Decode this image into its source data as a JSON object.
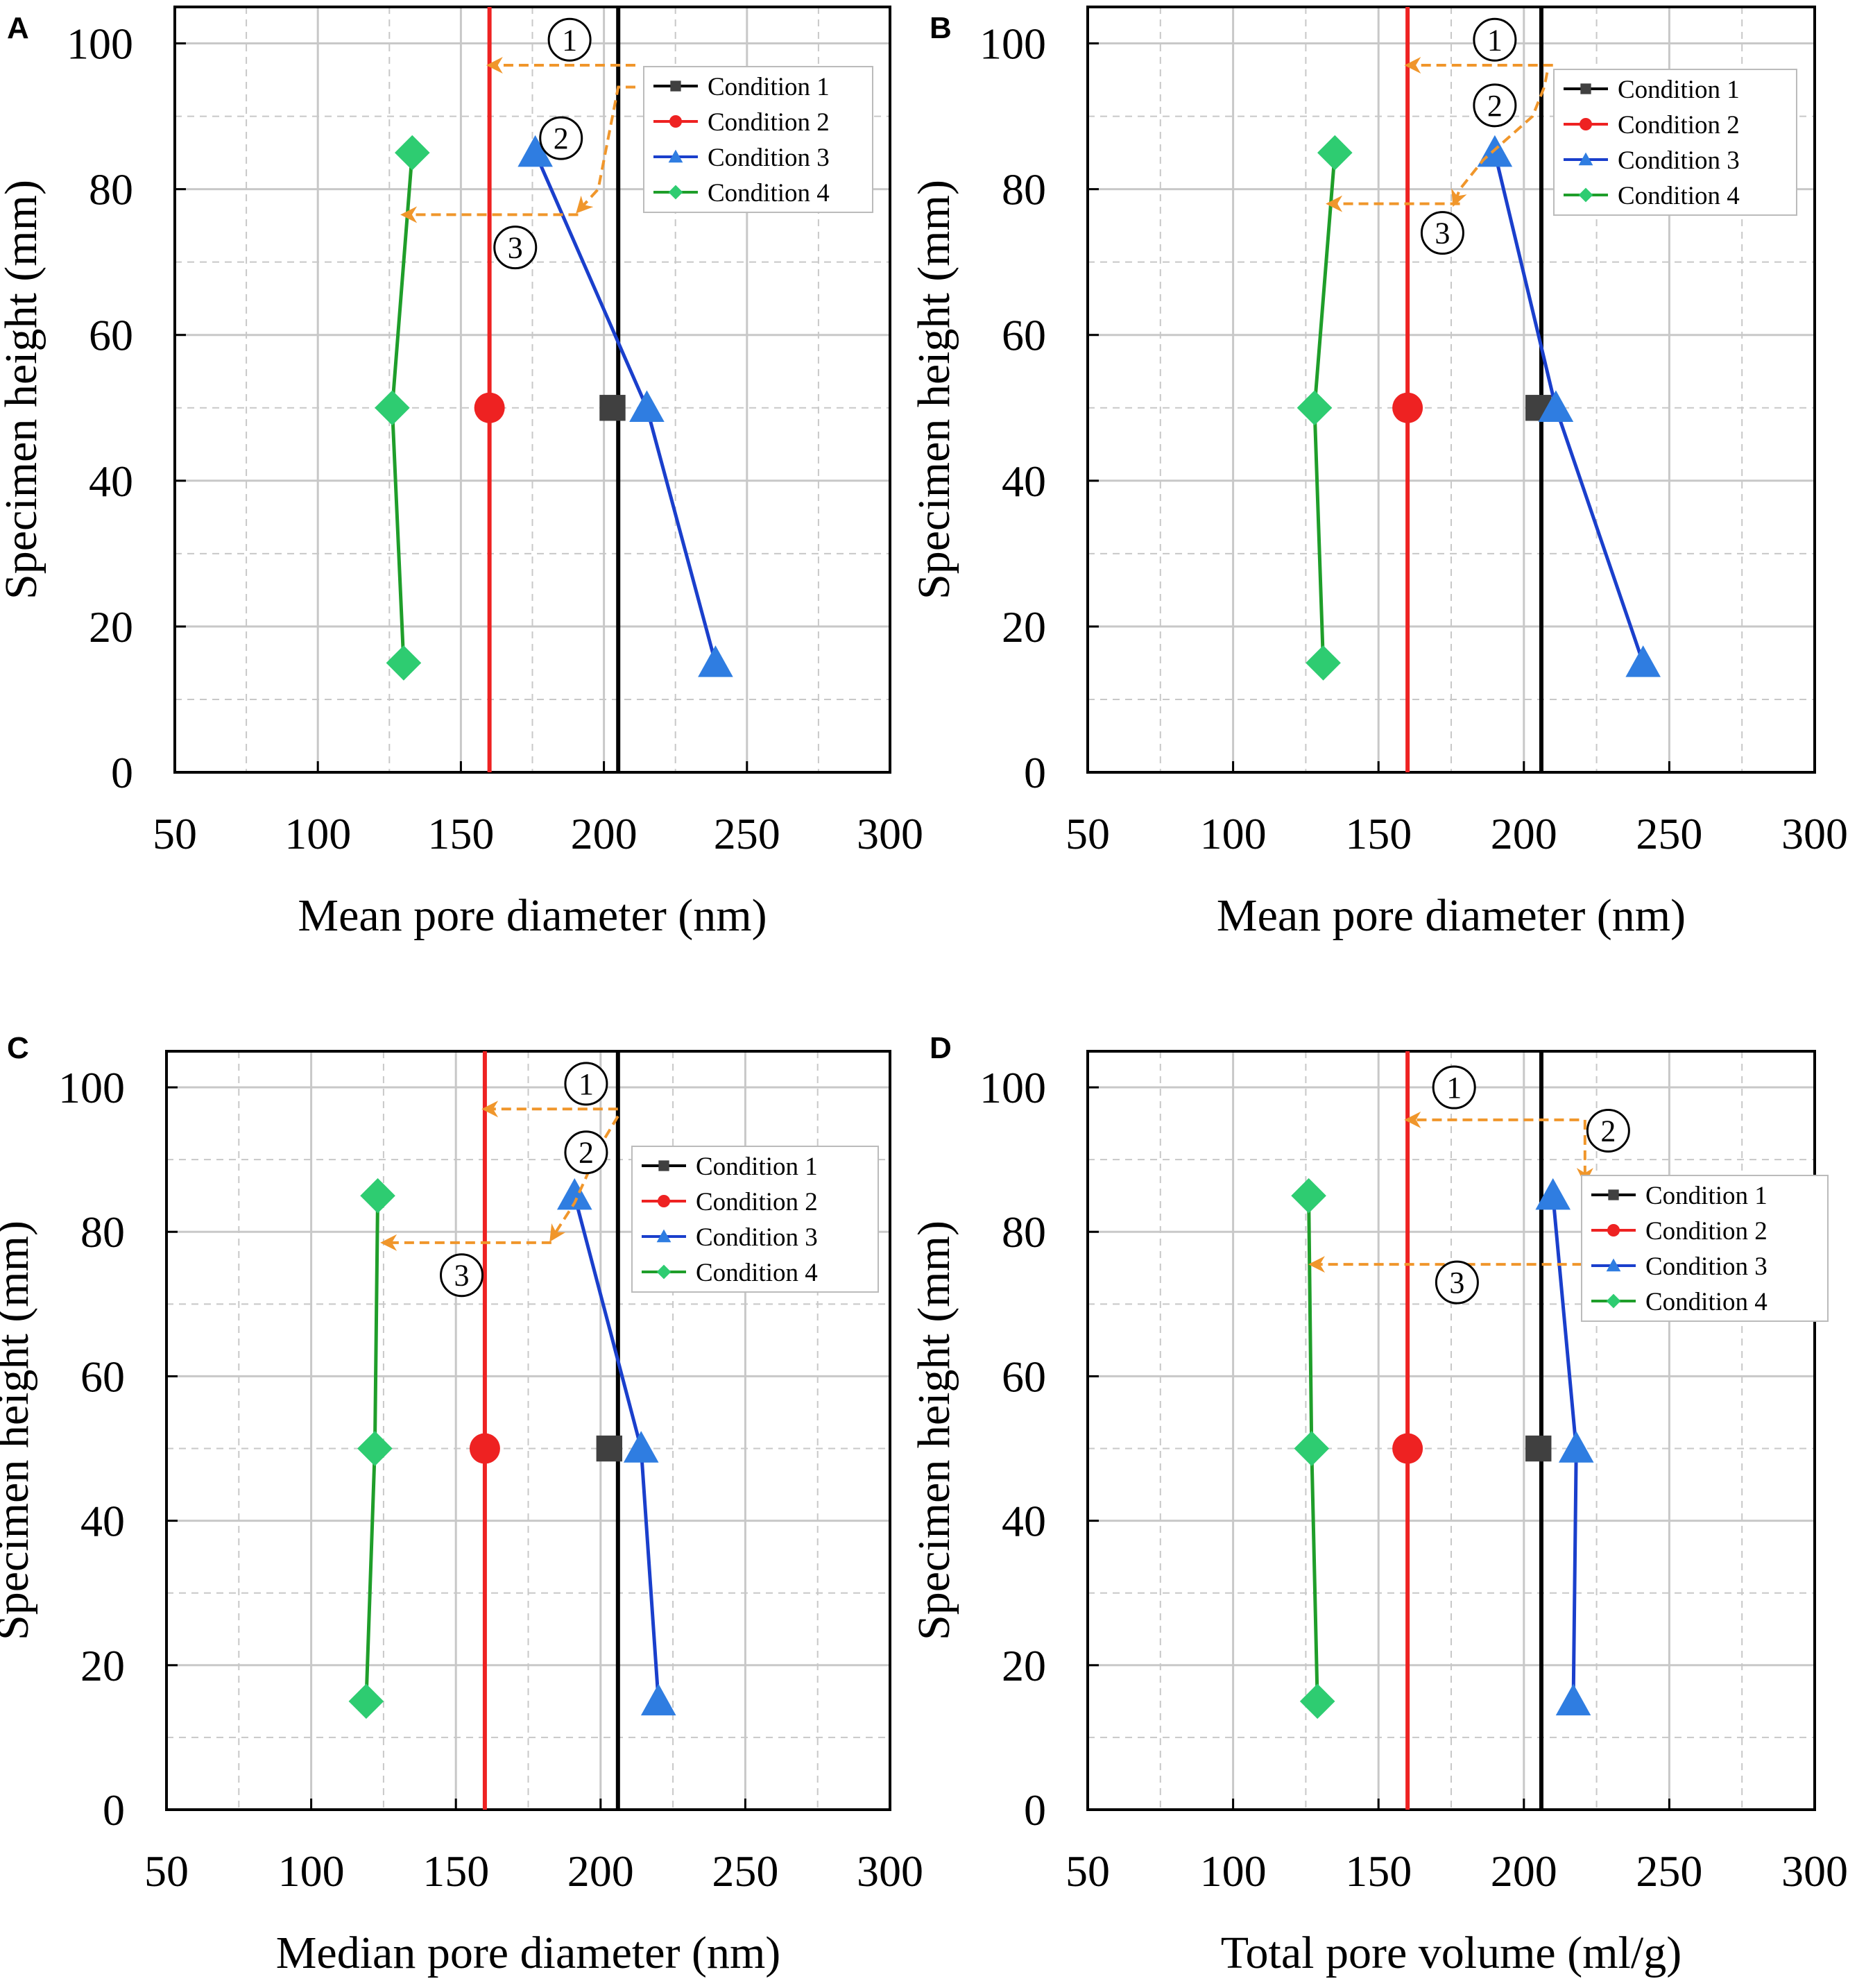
{
  "figure": {
    "colors": {
      "condition_1": "#000000",
      "condition_1_marker": "#404040",
      "condition_2": "#ee2222",
      "condition_3": "#1a3fcc",
      "condition_3_marker": "#2f7de1",
      "condition_4": "#1f9e2a",
      "condition_4_marker": "#2ecc71",
      "annotation_arrow": "#f0962b",
      "grid": "#c8c8c8"
    }
  },
  "chart_data": [
    {
      "panel": "A",
      "type": "line",
      "xlabel": "Mean pore diameter (nm)",
      "ylabel": "Specimen height (mm)",
      "xlim": [
        50,
        300
      ],
      "ylim": [
        0,
        105
      ],
      "xticks": [
        "50",
        "100",
        "150",
        "200",
        "250",
        "300"
      ],
      "yticks": [
        "0",
        "20",
        "40",
        "60",
        "80",
        "100"
      ],
      "grid": true,
      "legend_position": "top-right",
      "series": [
        {
          "name": "Condition 1",
          "kind": "vline",
          "x": 205,
          "marker": "square",
          "points": [
            [
              203,
              50
            ]
          ]
        },
        {
          "name": "Condition 2",
          "kind": "vline",
          "x": 160,
          "marker": "circle",
          "points": [
            [
              160,
              50
            ]
          ]
        },
        {
          "name": "Condition 3",
          "kind": "line",
          "marker": "triangle",
          "points": [
            [
              176,
              85
            ],
            [
              215,
              50
            ],
            [
              239,
              15
            ]
          ]
        },
        {
          "name": "Condition 4",
          "kind": "line",
          "marker": "diamond",
          "points": [
            [
              133,
              85
            ],
            [
              126,
              50
            ],
            [
              130,
              15
            ]
          ]
        }
      ],
      "annotations": [
        {
          "label": "1",
          "at": [
            188,
            100.5
          ],
          "arrow": [
            [
              211,
              97
            ],
            [
              160,
              97
            ]
          ]
        },
        {
          "label": "2",
          "at": [
            185,
            87
          ],
          "arrow": [
            [
              211,
              94
            ],
            [
              205,
              94
            ],
            [
              198,
              80
            ],
            [
              191,
              77
            ]
          ]
        },
        {
          "label": "3",
          "at": [
            169,
            72
          ],
          "arrow": [
            [
              191,
              76.5
            ],
            [
              130,
              76.5
            ]
          ]
        }
      ]
    },
    {
      "panel": "B",
      "type": "line",
      "xlabel": "Mean pore diameter (nm)",
      "ylabel": "Specimen height (mm)",
      "xlim": [
        50,
        300
      ],
      "ylim": [
        0,
        105
      ],
      "xticks": [
        "50",
        "100",
        "150",
        "200",
        "250",
        "300"
      ],
      "yticks": [
        "0",
        "20",
        "40",
        "60",
        "80",
        "100"
      ],
      "grid": true,
      "legend_position": "top-right",
      "series": [
        {
          "name": "Condition 1",
          "kind": "vline",
          "x": 206,
          "marker": "square",
          "points": [
            [
              205,
              50
            ]
          ]
        },
        {
          "name": "Condition 2",
          "kind": "vline",
          "x": 160,
          "marker": "circle",
          "points": [
            [
              160,
              50
            ]
          ]
        },
        {
          "name": "Condition 3",
          "kind": "line",
          "marker": "triangle",
          "points": [
            [
              190,
              85
            ],
            [
              211,
              50
            ],
            [
              241,
              15
            ]
          ]
        },
        {
          "name": "Condition 4",
          "kind": "line",
          "marker": "diamond",
          "points": [
            [
              135,
              85
            ],
            [
              128,
              50
            ],
            [
              131,
              15
            ]
          ]
        }
      ],
      "annotations": [
        {
          "label": "1",
          "at": [
            190,
            100.5
          ],
          "arrow": [
            [
              210,
              97
            ],
            [
              160,
              97
            ]
          ]
        },
        {
          "label": "2",
          "at": [
            190,
            91.5
          ],
          "arrow": [
            [
              208,
              96
            ],
            [
              207,
              94
            ],
            [
              203,
              90
            ],
            [
              186,
              84
            ],
            [
              178,
              80
            ],
            [
              176,
              78
            ]
          ]
        },
        {
          "label": "3",
          "at": [
            172,
            74
          ],
          "arrow": [
            [
              178,
              78
            ],
            [
              133,
              78
            ]
          ]
        }
      ]
    },
    {
      "panel": "C",
      "type": "line",
      "xlabel": "Median pore diameter (nm)",
      "ylabel": "Specimen height (mm)",
      "xlim": [
        50,
        300
      ],
      "ylim": [
        0,
        105
      ],
      "xticks": [
        "50",
        "100",
        "150",
        "200",
        "250",
        "300"
      ],
      "yticks": [
        "0",
        "20",
        "40",
        "60",
        "80",
        "100"
      ],
      "grid": true,
      "legend_position": "top-right",
      "series": [
        {
          "name": "Condition 1",
          "kind": "vline",
          "x": 206,
          "marker": "square",
          "points": [
            [
              203,
              50
            ]
          ]
        },
        {
          "name": "Condition 2",
          "kind": "vline",
          "x": 160,
          "marker": "circle",
          "points": [
            [
              160,
              50
            ]
          ]
        },
        {
          "name": "Condition 3",
          "kind": "line",
          "marker": "triangle",
          "points": [
            [
              191,
              85
            ],
            [
              214,
              50
            ],
            [
              220,
              15
            ]
          ]
        },
        {
          "name": "Condition 4",
          "kind": "line",
          "marker": "diamond",
          "points": [
            [
              123,
              85
            ],
            [
              122,
              50
            ],
            [
              119,
              15
            ]
          ]
        }
      ],
      "annotations": [
        {
          "label": "1",
          "at": [
            195,
            100.5
          ],
          "arrow": [
            [
              206,
              97
            ],
            [
              160,
              97
            ]
          ]
        },
        {
          "label": "2",
          "at": [
            195,
            91
          ],
          "arrow": [
            [
              206,
              96
            ],
            [
              200,
              92
            ],
            [
              191,
              84
            ],
            [
              183,
              79
            ]
          ]
        },
        {
          "label": "3",
          "at": [
            152,
            74
          ],
          "arrow": [
            [
              183,
              78.5
            ],
            [
              125,
              78.5
            ]
          ]
        }
      ]
    },
    {
      "panel": "D",
      "type": "line",
      "xlabel": "Total pore volume (ml/g)",
      "ylabel": "Specimen height (mm)",
      "xlim": [
        50,
        300
      ],
      "ylim": [
        0,
        105
      ],
      "xticks": [
        "50",
        "100",
        "150",
        "200",
        "250",
        "300"
      ],
      "yticks": [
        "0",
        "20",
        "40",
        "60",
        "80",
        "100"
      ],
      "grid": true,
      "legend_position": "top-right",
      "series": [
        {
          "name": "Condition 1",
          "kind": "vline",
          "x": 206,
          "marker": "square",
          "points": [
            [
              205,
              50
            ]
          ]
        },
        {
          "name": "Condition 2",
          "kind": "vline",
          "x": 160,
          "marker": "circle",
          "points": [
            [
              160,
              50
            ]
          ]
        },
        {
          "name": "Condition 3",
          "kind": "line",
          "marker": "triangle",
          "points": [
            [
              210,
              85
            ],
            [
              218,
              50
            ],
            [
              217,
              15
            ]
          ]
        },
        {
          "name": "Condition 4",
          "kind": "line",
          "marker": "diamond",
          "points": [
            [
              126,
              85
            ],
            [
              127,
              50
            ],
            [
              129,
              15
            ]
          ]
        }
      ],
      "annotations": [
        {
          "label": "1",
          "at": [
            176,
            100
          ],
          "arrow": [
            [
              219,
              95.5
            ],
            [
              160,
              95.5
            ]
          ]
        },
        {
          "label": "2",
          "at": [
            229,
            94
          ],
          "arrow": [
            [
              221,
              95.5
            ],
            [
              221,
              87
            ]
          ]
        },
        {
          "label": "3",
          "at": [
            177,
            73
          ],
          "arrow": [
            [
              220,
              75.5
            ],
            [
              127,
              75.5
            ]
          ]
        }
      ]
    }
  ]
}
